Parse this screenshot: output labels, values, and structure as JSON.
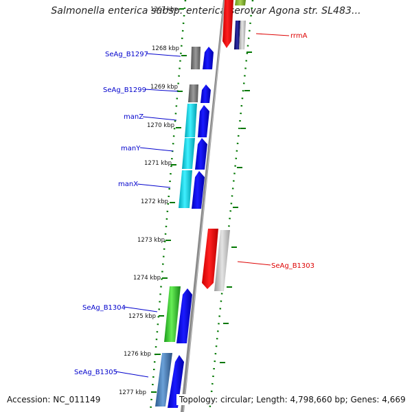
{
  "title": "Salmonella enterica subsp. enterica serovar Agona str. SL483...",
  "footer": {
    "accession": "Accession: NC_011149",
    "topology": "Topology: circular; Length: 4,798,660 bp; Genes: 4,669"
  },
  "colors": {
    "axis_ticks": "#007700",
    "forward_gene": "#0000ee",
    "reverse_gene": "#ff0000",
    "backbone": "#888888",
    "label_forward": "#0000cc",
    "label_reverse": "#dd0000"
  },
  "kbp_ticks": [
    "1267 kbp",
    "1268 kbp",
    "1269 kbp",
    "1270 kbp",
    "1271 kbp",
    "1272 kbp",
    "1273 kbp",
    "1274 kbp",
    "1275 kbp",
    "1276 kbp",
    "1277 kbp"
  ],
  "gene_labels": {
    "rrmA": "rrmA",
    "SeAg_B1297": "SeAg_B1297",
    "SeAg_B1299": "SeAg_B1299",
    "manZ": "manZ",
    "manY": "manY",
    "manX": "manX",
    "SeAg_B1303": "SeAg_B1303",
    "SeAg_B1304": "SeAg_B1304",
    "SeAg_B1305": "SeAg_B1305"
  }
}
